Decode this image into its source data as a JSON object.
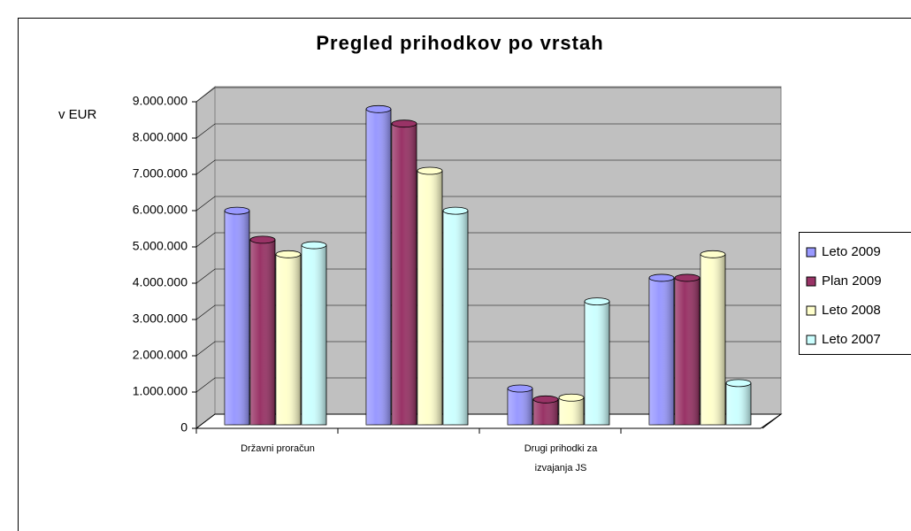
{
  "chart_data": {
    "type": "bar3d",
    "title": "Pregled prihodkov po vrstah",
    "y_label": "v EUR",
    "categories": [
      "Državni proračun",
      null,
      "Drugi prihodki za izvajanja JS",
      null
    ],
    "series": [
      {
        "name": "Leto 2009",
        "color": "#9999ff",
        "values": [
          5900000,
          8700000,
          1000000,
          4050000
        ]
      },
      {
        "name": "Plan 2009",
        "color": "#993366",
        "values": [
          5100000,
          8300000,
          700000,
          4050000
        ]
      },
      {
        "name": "Leto 2008",
        "color": "#ffffcc",
        "values": [
          4700000,
          7000000,
          750000,
          4700000
        ]
      },
      {
        "name": "Leto 2007",
        "color": "#ccffff",
        "values": [
          4950000,
          5900000,
          3400000,
          1150000
        ]
      }
    ],
    "ylim": [
      0,
      9000000
    ],
    "yticks": [
      0,
      {
        "value": 1000000,
        "label": "1.000.000"
      },
      {
        "value": 2000000,
        "label": "2.000.000"
      },
      {
        "value": 3000000,
        "label": "3.000.000"
      },
      {
        "value": 4000000,
        "label": "4.000.000"
      },
      {
        "value": 5000000,
        "label": "5.000.000"
      },
      {
        "value": 6000000,
        "label": "6.000.000"
      },
      {
        "value": 7000000,
        "label": "7.000.000"
      },
      {
        "value": 8000000,
        "label": "8.000.000"
      },
      {
        "value": 9000000,
        "label": "9.000.000"
      }
    ],
    "grid": true,
    "legend": "right"
  }
}
